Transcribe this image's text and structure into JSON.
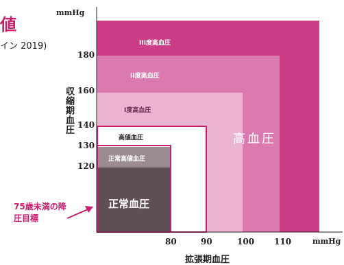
{
  "header": {
    "title_fragment": "値",
    "subtitle_fragment": "イン 2019)"
  },
  "chart_data": {
    "type": "nested-zones",
    "x_unit": "mmHg",
    "y_unit": "mmHg",
    "xlabel": "拡張期血圧",
    "ylabel": "収縮期血圧",
    "x_ticks": [
      80,
      90,
      100,
      110
    ],
    "y_ticks": [
      180,
      160,
      140,
      130,
      120
    ],
    "zones": [
      {
        "label": "III度高血圧",
        "diastolic_min": 110,
        "systolic_min": 180,
        "color": "#cc3d86"
      },
      {
        "label": "II度高血圧",
        "diastolic_min": 100,
        "systolic_min": 160,
        "color": "#da7aae"
      },
      {
        "label": "I度高血圧",
        "diastolic_min": 90,
        "systolic_min": 140,
        "color": "#ebb5d1"
      },
      {
        "label": "高値血圧",
        "diastolic_max": 90,
        "systolic_max": 140,
        "color": "#ffffff",
        "border_color": "#c8206f"
      },
      {
        "label": "正常高値血圧",
        "diastolic_max": 80,
        "systolic_max": 130,
        "color": "#9a8c91"
      },
      {
        "label": "正常血圧",
        "diastolic_max": 80,
        "systolic_max": 120,
        "color": "#5e5056"
      }
    ],
    "group_label": "高血圧",
    "annotation": {
      "text": "75歳未満の降圧目標",
      "target_zone": "正常血圧",
      "border_color": "#c8206f"
    }
  }
}
